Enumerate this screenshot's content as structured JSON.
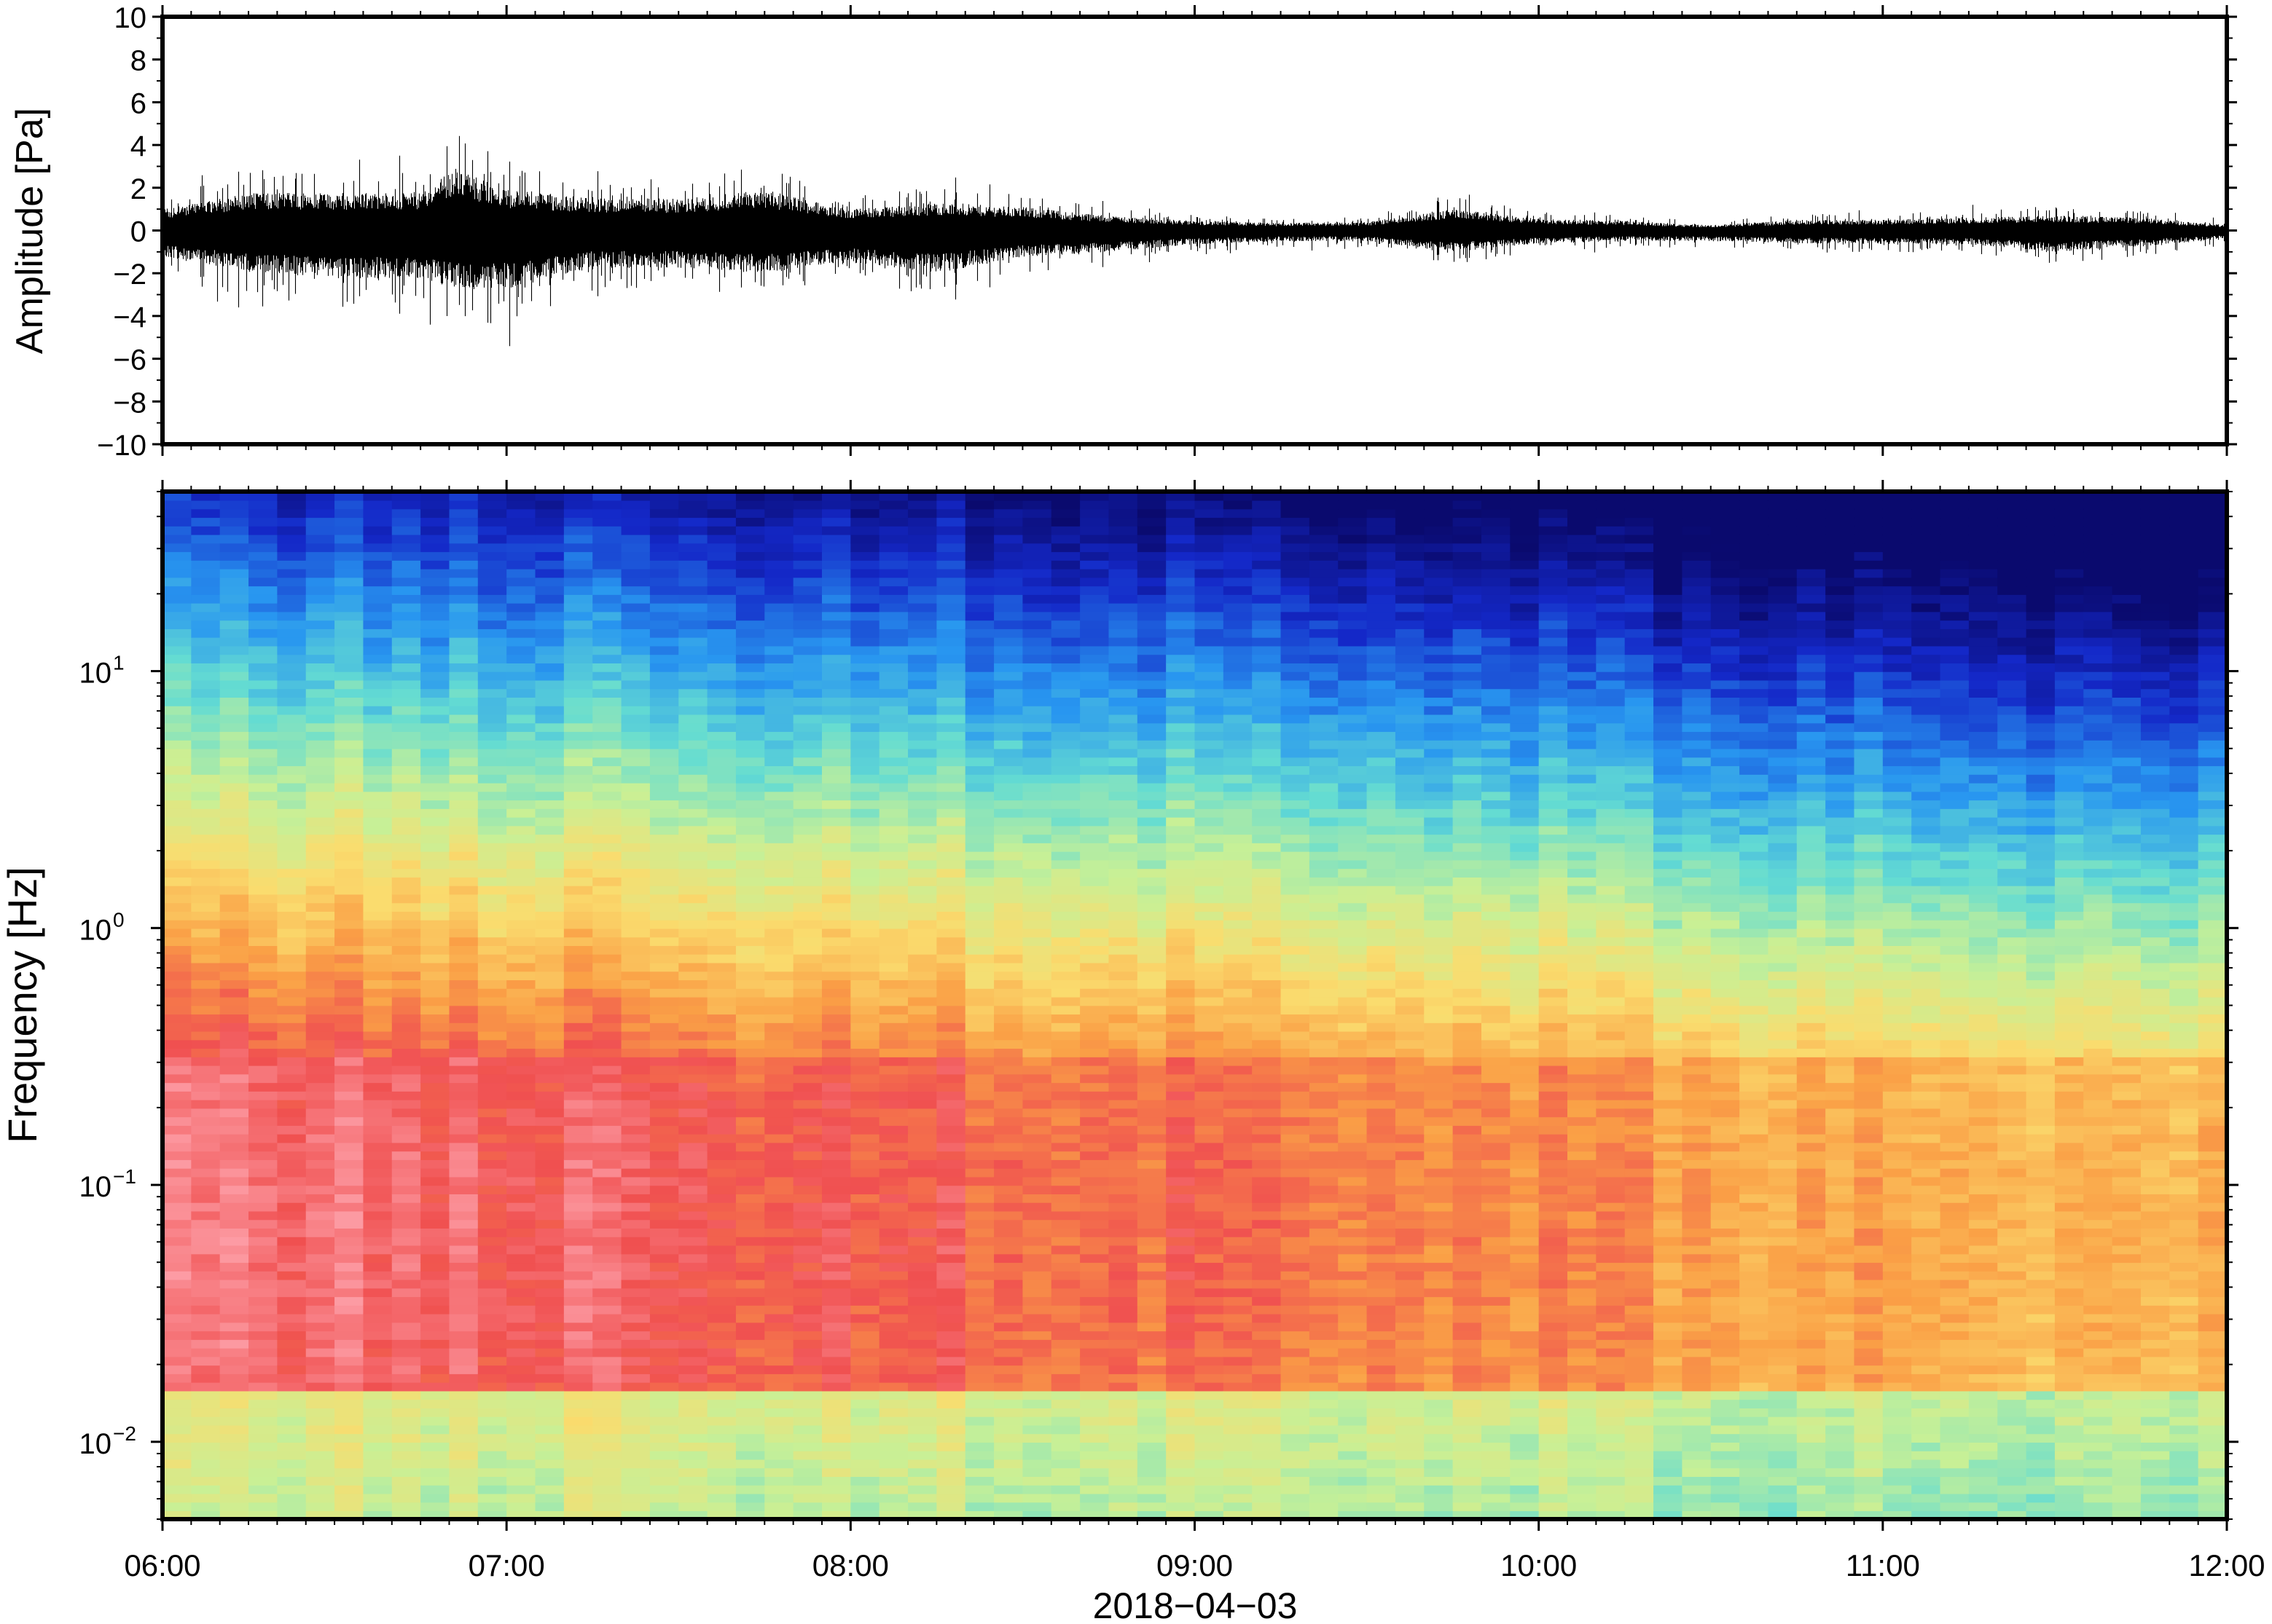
{
  "chart_data": [
    {
      "type": "line",
      "panel": "waveform",
      "ylabel": "Amplitude [Pa]",
      "ylim": [
        -10,
        10
      ],
      "yticks": [
        {
          "v": 10,
          "label": "10"
        },
        {
          "v": 8,
          "label": "8"
        },
        {
          "v": 6,
          "label": "6"
        },
        {
          "v": 4,
          "label": "4"
        },
        {
          "v": 2,
          "label": "2"
        },
        {
          "v": 0,
          "label": "0"
        },
        {
          "v": -2,
          "label": "−2"
        },
        {
          "v": -4,
          "label": "−4"
        },
        {
          "v": -6,
          "label": "−6"
        },
        {
          "v": -8,
          "label": "−8"
        },
        {
          "v": -10,
          "label": "−10"
        }
      ],
      "xlim_hours": [
        6,
        12
      ],
      "envelope": {
        "hours": [
          6.0,
          6.25,
          6.5,
          6.75,
          6.85,
          7.0,
          7.25,
          7.5,
          7.75,
          8.0,
          8.25,
          8.5,
          8.75,
          9.0,
          9.25,
          9.5,
          9.75,
          10.0,
          10.25,
          10.5,
          10.75,
          11.0,
          11.25,
          11.5,
          11.75,
          12.0
        ],
        "positive_peak_pa": [
          2.0,
          3.5,
          3.5,
          3.6,
          5.8,
          3.8,
          3.0,
          3.0,
          3.8,
          2.0,
          2.6,
          2.2,
          1.4,
          0.9,
          0.7,
          0.8,
          2.0,
          1.1,
          0.9,
          0.5,
          1.0,
          1.0,
          1.2,
          1.4,
          1.2,
          0.5
        ],
        "negative_peak_pa": [
          -2.5,
          -3.8,
          -4.5,
          -4.5,
          -5.5,
          -5.5,
          -3.5,
          -3.5,
          -4.0,
          -3.0,
          -4.0,
          -2.5,
          -2.0,
          -1.3,
          -1.0,
          -1.0,
          -2.0,
          -1.2,
          -1.0,
          -1.0,
          -1.2,
          -1.3,
          -1.3,
          -2.0,
          -1.5,
          -0.8
        ]
      }
    },
    {
      "type": "heatmap",
      "panel": "spectrogram",
      "ylabel": "Frequency [Hz]",
      "yscale": "log",
      "ylim": [
        0.005,
        50
      ],
      "yticks": [
        {
          "v": 10,
          "base": "10",
          "exp": "1"
        },
        {
          "v": 1,
          "base": "10",
          "exp": "0"
        },
        {
          "v": 0.1,
          "base": "10",
          "exp": "−1"
        },
        {
          "v": 0.01,
          "base": "10",
          "exp": "−2"
        }
      ],
      "xlabel": "2018−04−03",
      "xlim_hours": [
        6,
        12
      ],
      "xticks": [
        "06:00",
        "07:00",
        "08:00",
        "09:00",
        "10:00",
        "11:00",
        "12:00"
      ],
      "colormap": "rainbow (blue = low power, red/pink = high power)"
    }
  ]
}
